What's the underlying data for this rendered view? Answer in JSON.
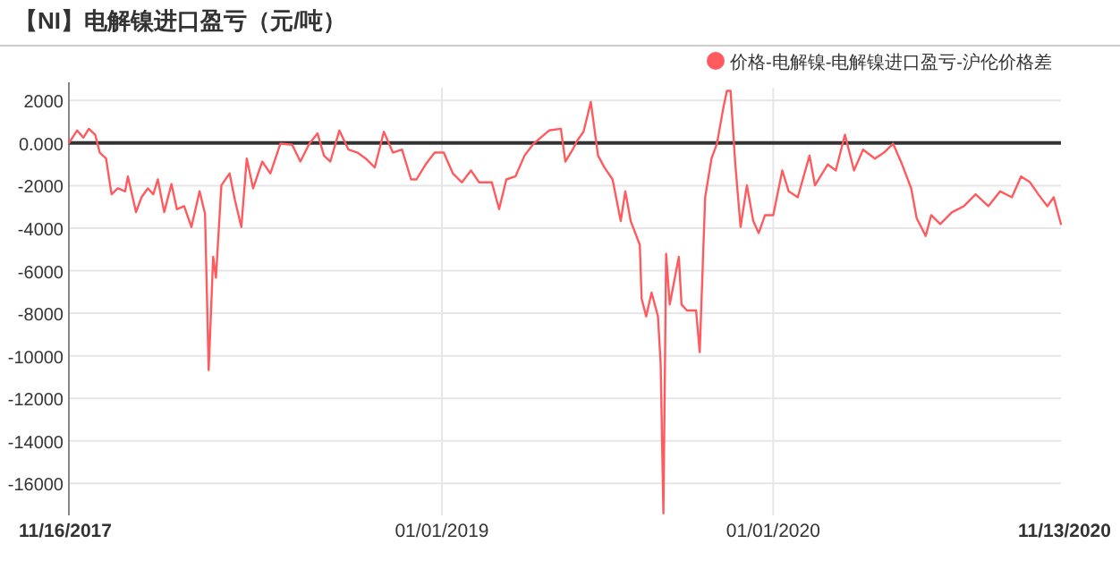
{
  "chart_data": {
    "type": "line",
    "title": "【NI】电解镍进口盈亏（元/吨）",
    "legend": "top right",
    "grid": true,
    "marker": "none",
    "line_style": "solid",
    "xlim": [
      "2017-11-16",
      "2020-11-13"
    ],
    "xticks": [
      {
        "value": "2017-11-16",
        "label": "11/16/2017"
      },
      {
        "value": "2019-01-01",
        "label": "01/01/2019"
      },
      {
        "value": "2020-01-01",
        "label": "01/01/2020"
      },
      {
        "value": "2020-11-13",
        "label": "11/13/2020"
      }
    ],
    "ylim": [
      -17500,
      2600
    ],
    "yticks": [
      2000,
      {
        "value": 0,
        "label": "0.000"
      },
      -2000,
      -4000,
      -6000,
      -8000,
      -10000,
      -12000,
      -14000,
      -16000
    ],
    "ref_lines": [
      {
        "axis": "y",
        "value": 0,
        "color": "#333333"
      }
    ],
    "series": [
      {
        "name": "价格-电解镍-电解镍进口盈亏-沪伦价格差",
        "color": "#ff5b5e",
        "x": [
          "2017-11-16",
          "2017-11-25",
          "2017-12-02",
          "2017-12-08",
          "2017-12-15",
          "2017-12-20",
          "2017-12-27",
          "2018-01-02",
          "2018-01-09",
          "2018-01-17",
          "2018-01-20",
          "2018-01-29",
          "2018-02-04",
          "2018-02-11",
          "2018-02-17",
          "2018-02-22",
          "2018-03-01",
          "2018-03-09",
          "2018-03-15",
          "2018-03-23",
          "2018-03-31",
          "2018-04-09",
          "2018-04-15",
          "2018-04-19",
          "2018-04-24",
          "2018-04-27",
          "2018-05-03",
          "2018-05-12",
          "2018-05-18",
          "2018-05-25",
          "2018-05-31",
          "2018-06-07",
          "2018-06-17",
          "2018-06-26",
          "2018-07-07",
          "2018-07-20",
          "2018-07-29",
          "2018-08-08",
          "2018-08-17",
          "2018-08-24",
          "2018-08-31",
          "2018-09-10",
          "2018-09-20",
          "2018-09-30",
          "2018-10-09",
          "2018-10-19",
          "2018-10-29",
          "2018-11-08",
          "2018-11-18",
          "2018-11-28",
          "2018-12-04",
          "2018-12-14",
          "2018-12-24",
          "2019-01-03",
          "2019-01-13",
          "2019-01-23",
          "2019-02-02",
          "2019-02-11",
          "2019-02-25",
          "2019-03-05",
          "2019-03-13",
          "2019-03-23",
          "2019-04-02",
          "2019-04-12",
          "2019-04-29",
          "2019-05-12",
          "2019-05-17",
          "2019-05-25",
          "2019-05-30",
          "2019-06-06",
          "2019-06-14",
          "2019-06-22",
          "2019-06-29",
          "2019-07-08",
          "2019-07-17",
          "2019-07-22",
          "2019-07-28",
          "2019-08-07",
          "2019-08-09",
          "2019-08-14",
          "2019-08-20",
          "2019-08-27",
          "2019-08-30",
          "2019-09-02",
          "2019-09-05",
          "2019-09-09",
          "2019-09-19",
          "2019-09-22",
          "2019-09-28",
          "2019-10-08",
          "2019-10-12",
          "2019-10-18",
          "2019-10-25",
          "2019-10-31",
          "2019-11-07",
          "2019-11-11",
          "2019-11-15",
          "2019-11-20",
          "2019-11-26",
          "2019-12-03",
          "2019-12-10",
          "2019-12-16",
          "2019-12-23",
          "2020-01-01",
          "2020-01-11",
          "2020-01-18",
          "2020-01-28",
          "2020-02-10",
          "2020-02-16",
          "2020-03-01",
          "2020-03-10",
          "2020-03-20",
          "2020-03-30",
          "2020-04-09",
          "2020-04-22",
          "2020-05-02",
          "2020-05-12",
          "2020-05-22",
          "2020-06-01",
          "2020-06-07",
          "2020-06-17",
          "2020-06-23",
          "2020-07-03",
          "2020-07-16",
          "2020-07-29",
          "2020-08-11",
          "2020-08-25",
          "2020-09-07",
          "2020-09-20",
          "2020-09-30",
          "2020-10-10",
          "2020-10-19",
          "2020-10-29",
          "2020-11-05",
          "2020-11-13"
        ],
        "values": [
          0,
          590,
          250,
          670,
          390,
          -450,
          -730,
          -2410,
          -2130,
          -2270,
          -1570,
          -3250,
          -2550,
          -2130,
          -2410,
          -1710,
          -3250,
          -1930,
          -3110,
          -2970,
          -3950,
          -2270,
          -3330,
          -10670,
          -5350,
          -6330,
          -1990,
          -1430,
          -2690,
          -3950,
          -730,
          -2130,
          -870,
          -1430,
          -30,
          -80,
          -870,
          -30,
          450,
          -590,
          -870,
          590,
          -310,
          -450,
          -730,
          -1150,
          530,
          -450,
          -310,
          -1710,
          -1710,
          -1010,
          -450,
          -450,
          -1430,
          -1850,
          -1290,
          -1850,
          -1850,
          -3110,
          -1710,
          -1570,
          -590,
          -30,
          590,
          670,
          -870,
          -310,
          110,
          530,
          1930,
          -590,
          -1150,
          -1710,
          -3670,
          -2270,
          -3670,
          -4790,
          -7310,
          -8150,
          -7030,
          -8150,
          -10390,
          -17400,
          -5210,
          -7590,
          -5350,
          -7590,
          -7870,
          -7870,
          -9830,
          -2550,
          -730,
          -30,
          1650,
          2450,
          2450,
          -870,
          -3950,
          -1990,
          -3670,
          -4230,
          -3390,
          -3390,
          -1290,
          -2270,
          -2550,
          -590,
          -1990,
          -1010,
          -1290,
          390,
          -1290,
          -310,
          -730,
          -450,
          -30,
          -1010,
          -2130,
          -3530,
          -4370,
          -3390,
          -3810,
          -3250,
          -2970,
          -2410,
          -2970,
          -2270,
          -2550,
          -1570,
          -1850,
          -2410,
          -2970,
          -2550,
          -3810
        ]
      }
    ]
  }
}
